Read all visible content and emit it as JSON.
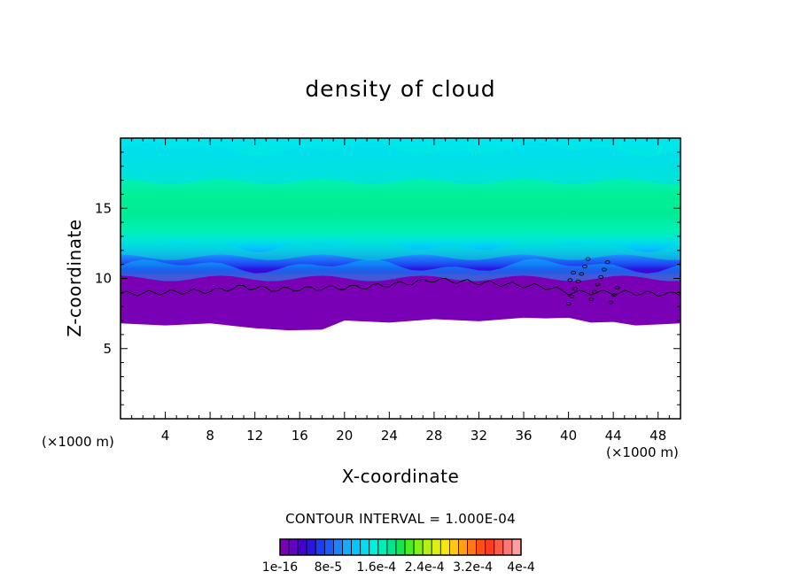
{
  "chart_data": {
    "type": "heatmap",
    "title": "density of cloud",
    "xlabel": "X-coordinate",
    "ylabel": "Z-coordinate",
    "x_unit_label_left": "(×1000 m)",
    "x_unit_label_right": "(×1000 m)",
    "xlim": [
      0,
      50
    ],
    "ylim": [
      0,
      20
    ],
    "x_ticks": [
      4,
      8,
      12,
      16,
      20,
      24,
      28,
      32,
      36,
      40,
      44,
      48
    ],
    "y_ticks": [
      5,
      10,
      15
    ],
    "contour_interval_text": "CONTOUR INTERVAL = 1.000E-04",
    "cloud_base_z": [
      [
        0,
        6.8
      ],
      [
        4,
        6.8
      ],
      [
        8,
        6.8
      ],
      [
        12,
        6.6
      ],
      [
        15,
        6.3
      ],
      [
        18,
        6.5
      ],
      [
        20,
        7.0
      ],
      [
        24,
        7.0
      ],
      [
        28,
        7.1
      ],
      [
        32,
        7.1
      ],
      [
        36,
        7.2
      ],
      [
        38,
        7.3
      ],
      [
        40,
        7.2
      ],
      [
        42,
        7.0
      ],
      [
        44,
        6.9
      ],
      [
        46,
        6.8
      ],
      [
        50,
        6.8
      ]
    ],
    "first_contour_z": [
      [
        0,
        8.9
      ],
      [
        4,
        9.0
      ],
      [
        8,
        9.1
      ],
      [
        11,
        9.4
      ],
      [
        14,
        9.2
      ],
      [
        18,
        9.3
      ],
      [
        22,
        9.4
      ],
      [
        26,
        9.7
      ],
      [
        28,
        9.9
      ],
      [
        32,
        9.7
      ],
      [
        36,
        9.5
      ],
      [
        38,
        9.4
      ],
      [
        40,
        9.0
      ],
      [
        44,
        9.0
      ],
      [
        48,
        8.9
      ],
      [
        50,
        8.9
      ]
    ],
    "colorbar": {
      "colors": [
        "#7a00b5",
        "#6400c8",
        "#4200d2",
        "#2a14e0",
        "#1e3cf0",
        "#1e5afa",
        "#1e82ff",
        "#14aaff",
        "#00c8ff",
        "#00dcf0",
        "#00f0dc",
        "#00f0b4",
        "#00e68c",
        "#14e650",
        "#46f01e",
        "#82f014",
        "#b4f014",
        "#dcf014",
        "#f5e614",
        "#ffc814",
        "#ffa014",
        "#ff7814",
        "#ff5014",
        "#ff3c1e",
        "#ff5a46",
        "#ff7878",
        "#ffa0a0"
      ],
      "labels": [
        "1e-16",
        "8e-5",
        "1.6e-4",
        "2.4e-4",
        "3.2e-4",
        "4e-4"
      ]
    }
  }
}
